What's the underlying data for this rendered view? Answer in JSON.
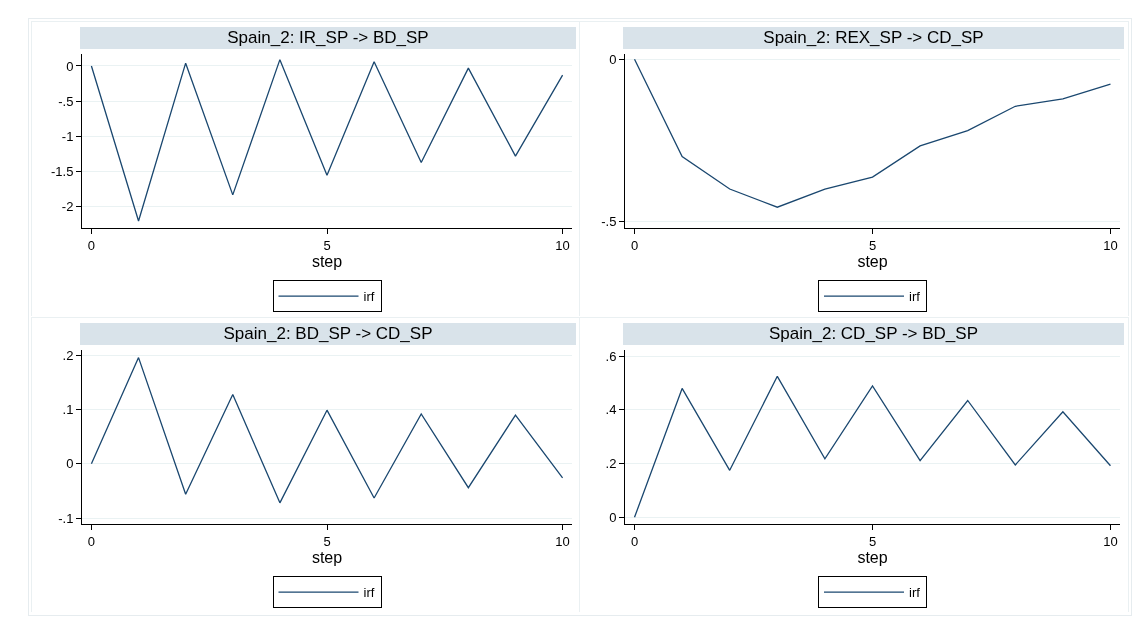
{
  "chart_data": [
    {
      "type": "line",
      "title": "Spain_2: IR_SP -> BD_SP",
      "xlabel": "step",
      "x": [
        0,
        1,
        2,
        3,
        4,
        5,
        6,
        7,
        8,
        9,
        10
      ],
      "xlim": [
        -0.2,
        10.2
      ],
      "xticks": [
        0,
        5,
        10
      ],
      "ylim": [
        -2.3,
        0.17
      ],
      "yticks": [
        {
          "value": -2,
          "label": "-2"
        },
        {
          "value": -1.5,
          "label": "-1.5"
        },
        {
          "value": -1,
          "label": "-1"
        },
        {
          "value": -0.5,
          "label": "-.5"
        },
        {
          "value": 0,
          "label": "0"
        }
      ],
      "grid": "y",
      "legend": "bottom",
      "series": [
        {
          "name": "irf",
          "color": "#1a476f",
          "values": [
            0,
            -2.2,
            0.04,
            -1.83,
            0.09,
            -1.55,
            0.06,
            -1.37,
            -0.03,
            -1.28,
            -0.13
          ]
        }
      ]
    },
    {
      "type": "line",
      "title": "Spain_2: REX_SP -> CD_SP",
      "xlabel": "step",
      "x": [
        0,
        1,
        2,
        3,
        4,
        5,
        6,
        7,
        8,
        9,
        10
      ],
      "xlim": [
        -0.2,
        10.2
      ],
      "xticks": [
        0,
        5,
        10
      ],
      "ylim": [
        -0.52,
        0.016
      ],
      "yticks": [
        {
          "value": -0.5,
          "label": "-.5"
        },
        {
          "value": 0,
          "label": "0"
        }
      ],
      "grid": "y",
      "legend": "bottom",
      "series": [
        {
          "name": "irf",
          "color": "#1a476f",
          "values": [
            0,
            -0.3,
            -0.4,
            -0.456,
            -0.4,
            -0.363,
            -0.267,
            -0.22,
            -0.145,
            -0.122,
            -0.077
          ]
        }
      ]
    },
    {
      "type": "line",
      "title": "Spain_2: BD_SP -> CD_SP",
      "xlabel": "step",
      "x": [
        0,
        1,
        2,
        3,
        4,
        5,
        6,
        7,
        8,
        9,
        10
      ],
      "xlim": [
        -0.2,
        10.2
      ],
      "xticks": [
        0,
        5,
        10
      ],
      "ylim": [
        -0.111,
        0.21
      ],
      "yticks": [
        {
          "value": -0.1,
          "label": "-.1"
        },
        {
          "value": 0,
          "label": "0"
        },
        {
          "value": 0.1,
          "label": ".1"
        },
        {
          "value": 0.2,
          "label": ".2"
        }
      ],
      "grid": "y",
      "legend": "bottom",
      "series": [
        {
          "name": "irf",
          "color": "#1a476f",
          "values": [
            0,
            0.196,
            -0.056,
            0.128,
            -0.072,
            0.099,
            -0.063,
            0.092,
            -0.044,
            0.09,
            -0.026
          ]
        }
      ]
    },
    {
      "type": "line",
      "title": "Spain_2: CD_SP -> BD_SP",
      "xlabel": "step",
      "x": [
        0,
        1,
        2,
        3,
        4,
        5,
        6,
        7,
        8,
        9,
        10
      ],
      "xlim": [
        -0.2,
        10.2
      ],
      "xticks": [
        0,
        5,
        10
      ],
      "ylim": [
        -0.025,
        0.623
      ],
      "yticks": [
        {
          "value": 0,
          "label": "0"
        },
        {
          "value": 0.2,
          "label": ".2"
        },
        {
          "value": 0.4,
          "label": ".4"
        },
        {
          "value": 0.6,
          "label": ".6"
        }
      ],
      "grid": "y",
      "legend": "bottom",
      "series": [
        {
          "name": "irf",
          "color": "#1a476f",
          "values": [
            0,
            0.48,
            0.175,
            0.525,
            0.218,
            0.489,
            0.211,
            0.435,
            0.195,
            0.393,
            0.192
          ]
        }
      ]
    }
  ]
}
